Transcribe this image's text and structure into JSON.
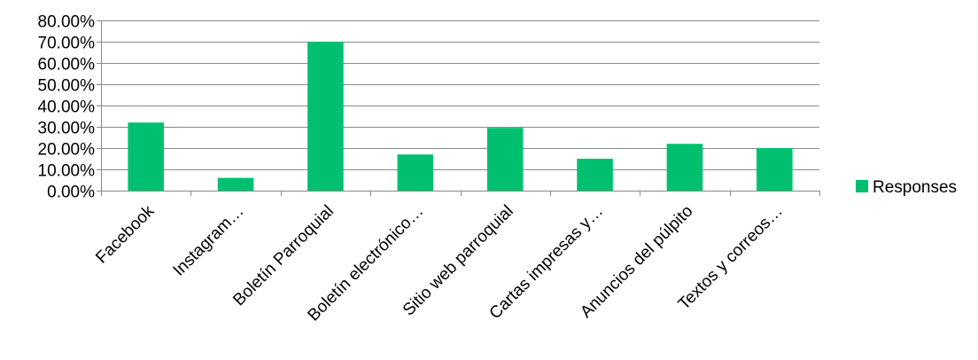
{
  "chart_data": {
    "type": "bar",
    "title": "",
    "xlabel": "",
    "ylabel": "",
    "categories": [
      "Facebook",
      "Instagram…",
      "Boletín Parroquial",
      "Boletín electrónico…",
      "Sitio web parroquial",
      "Cartas impresas y…",
      "Anuncios del púlpito",
      "Textos y correos…"
    ],
    "series": [
      {
        "name": "Responses",
        "color": "#00c070",
        "values": [
          0.32,
          0.06,
          0.7,
          0.17,
          0.295,
          0.15,
          0.22,
          0.2
        ]
      }
    ],
    "ylim": [
      0,
      0.8
    ],
    "yticks": [
      0,
      0.1,
      0.2,
      0.3,
      0.4,
      0.5,
      0.6,
      0.7,
      0.8
    ],
    "ytick_labels": [
      "0.00%",
      "10.00%",
      "20.00%",
      "30.00%",
      "40.00%",
      "50.00%",
      "60.00%",
      "70.00%",
      "80.00%"
    ],
    "grid": true,
    "legend_position": "right",
    "legend": [
      "Responses"
    ],
    "colors": {
      "bar": "#00c070",
      "grid": "#898989",
      "axis": "#898989"
    }
  }
}
